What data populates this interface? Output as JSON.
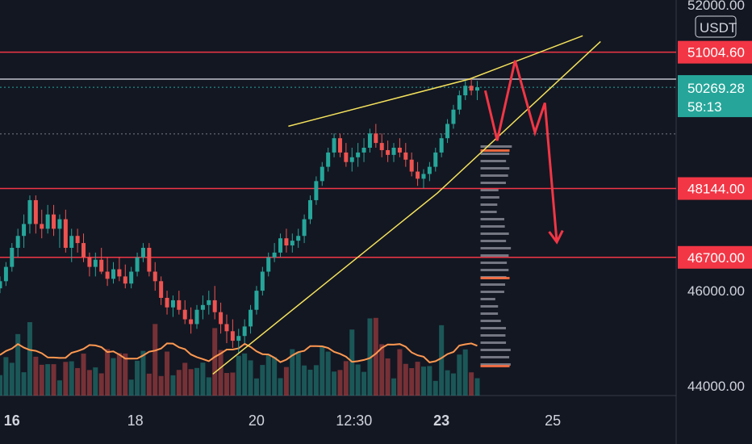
{
  "chart_data": {
    "type": "candlestick",
    "currency": "USDT",
    "price_axis": {
      "ticks": [
        "52000.00",
        "46000.00",
        "44000.00"
      ],
      "range": [
        43800,
        52100
      ]
    },
    "time_axis": {
      "ticks": [
        {
          "label": "16",
          "bold": true,
          "t": 0.6
        },
        {
          "label": "18",
          "bold": false,
          "t": 6.8
        },
        {
          "label": "20",
          "bold": false,
          "t": 12.9
        },
        {
          "label": "12:30",
          "bold": false,
          "t": 17.8
        },
        {
          "label": "23",
          "bold": true,
          "t": 22.2
        },
        {
          "label": "25",
          "bold": false,
          "t": 27.8
        }
      ],
      "range": [
        0,
        34
      ]
    },
    "levels": [
      {
        "label": "51004.60",
        "price": 51004.6,
        "color": "#f23645"
      },
      {
        "label": "48144.00",
        "price": 48144.0,
        "color": "#f23645"
      },
      {
        "label": "46700.00",
        "price": 46700.0,
        "color": "#f23645"
      }
    ],
    "gray_line": {
      "price": 50440,
      "color": "#9598a1"
    },
    "last_price": {
      "label": "50269.28",
      "countdown": "58:13",
      "price": 50269.28,
      "color": "#26a69a"
    },
    "dotted_line": {
      "price": 49290
    },
    "trendlines": [
      {
        "name": "upper-wedge-line",
        "points": [
          [
            14.5,
            49450
          ],
          [
            23.6,
            50440
          ],
          [
            29.3,
            51350
          ]
        ]
      },
      {
        "name": "lower-wedge-line",
        "points": [
          [
            10.7,
            44250
          ],
          [
            22.0,
            48050
          ],
          [
            30.2,
            51230
          ]
        ]
      }
    ],
    "projection": {
      "color": "#f23645",
      "points": [
        [
          24.4,
          50200
        ],
        [
          25.0,
          49150
        ],
        [
          25.9,
          50830
        ],
        [
          26.9,
          49320
        ],
        [
          27.4,
          49940
        ],
        [
          28.0,
          47020
        ]
      ]
    },
    "series": [
      {
        "name": "price",
        "candles": [
          [
            0,
            46050,
            46300,
            45950,
            46200
          ],
          [
            0.3,
            46200,
            46600,
            46100,
            46500
          ],
          [
            0.6,
            46500,
            47000,
            46400,
            46900
          ],
          [
            0.9,
            46900,
            47300,
            46700,
            47150
          ],
          [
            1.2,
            47150,
            47600,
            46900,
            47400
          ],
          [
            1.5,
            47400,
            48000,
            47200,
            47900
          ],
          [
            1.8,
            47900,
            48000,
            47200,
            47400
          ],
          [
            2.1,
            47400,
            47700,
            47100,
            47300
          ],
          [
            2.4,
            47300,
            47800,
            47200,
            47600
          ],
          [
            2.7,
            47600,
            47800,
            47150,
            47300
          ],
          [
            3.0,
            47300,
            47600,
            46900,
            47500
          ],
          [
            3.3,
            47500,
            47700,
            46800,
            46900
          ],
          [
            3.6,
            46900,
            47300,
            46600,
            47150
          ],
          [
            3.9,
            47150,
            47300,
            46800,
            47000
          ],
          [
            4.2,
            47000,
            47200,
            46600,
            46700
          ],
          [
            4.5,
            46700,
            46800,
            46300,
            46500
          ],
          [
            4.8,
            46500,
            46800,
            46300,
            46650
          ],
          [
            5.1,
            46650,
            46900,
            46350,
            46400
          ],
          [
            5.4,
            46400,
            46700,
            46100,
            46250
          ],
          [
            5.7,
            46250,
            46600,
            46150,
            46450
          ],
          [
            6.0,
            46450,
            46700,
            46200,
            46300
          ],
          [
            6.3,
            46300,
            46550,
            46050,
            46150
          ],
          [
            6.6,
            46150,
            46500,
            46050,
            46400
          ],
          [
            6.9,
            46400,
            46800,
            46300,
            46700
          ],
          [
            7.2,
            46700,
            47000,
            46600,
            46900
          ],
          [
            7.5,
            46900,
            47000,
            46300,
            46400
          ],
          [
            7.8,
            46400,
            46600,
            46000,
            46200
          ],
          [
            8.1,
            46200,
            46300,
            45700,
            45850
          ],
          [
            8.4,
            45850,
            46000,
            45500,
            45650
          ],
          [
            8.7,
            45650,
            45900,
            45450,
            45800
          ],
          [
            9.0,
            45800,
            46000,
            45500,
            45600
          ],
          [
            9.3,
            45600,
            45800,
            45300,
            45400
          ],
          [
            9.6,
            45400,
            45650,
            45100,
            45300
          ],
          [
            9.9,
            45300,
            45700,
            45200,
            45600
          ],
          [
            10.2,
            45600,
            45900,
            45400,
            45700
          ],
          [
            10.5,
            45700,
            46000,
            45500,
            45800
          ],
          [
            10.8,
            45800,
            46100,
            45400,
            45550
          ],
          [
            11.1,
            45550,
            45750,
            45100,
            45300
          ],
          [
            11.4,
            45300,
            45500,
            44900,
            45150
          ],
          [
            11.7,
            45150,
            45400,
            44800,
            44950
          ],
          [
            12.0,
            44950,
            45200,
            44700,
            45050
          ],
          [
            12.3,
            45050,
            45400,
            44900,
            45250
          ],
          [
            12.6,
            45250,
            45700,
            45100,
            45600
          ],
          [
            12.9,
            45600,
            46100,
            45500,
            46000
          ],
          [
            13.2,
            46000,
            46500,
            45900,
            46400
          ],
          [
            13.5,
            46400,
            46800,
            46300,
            46700
          ],
          [
            13.8,
            46700,
            47000,
            46600,
            46800
          ],
          [
            14.1,
            46800,
            47200,
            46700,
            47100
          ],
          [
            14.4,
            47100,
            47300,
            46800,
            46950
          ],
          [
            14.7,
            46950,
            47200,
            46800,
            47050
          ],
          [
            15.0,
            47050,
            47300,
            46900,
            47150
          ],
          [
            15.3,
            47150,
            47600,
            47000,
            47500
          ],
          [
            15.6,
            47500,
            48000,
            47400,
            47900
          ],
          [
            15.9,
            47900,
            48400,
            47800,
            48300
          ],
          [
            16.2,
            48300,
            48700,
            48200,
            48600
          ],
          [
            16.5,
            48600,
            49000,
            48500,
            48900
          ],
          [
            16.8,
            48900,
            49300,
            48800,
            49200
          ],
          [
            17.1,
            49200,
            49300,
            48800,
            48900
          ],
          [
            17.4,
            48900,
            49100,
            48600,
            48700
          ],
          [
            17.7,
            48700,
            49000,
            48500,
            48800
          ],
          [
            18.0,
            48800,
            49100,
            48600,
            48900
          ],
          [
            18.3,
            48900,
            49200,
            48700,
            49000
          ],
          [
            18.6,
            49000,
            49400,
            48900,
            49300
          ],
          [
            18.9,
            49300,
            49500,
            49000,
            49100
          ],
          [
            19.2,
            49100,
            49300,
            48800,
            48950
          ],
          [
            19.5,
            48950,
            49150,
            48700,
            48850
          ],
          [
            19.8,
            48850,
            49100,
            48700,
            49000
          ],
          [
            20.1,
            49000,
            49200,
            48800,
            48900
          ],
          [
            20.4,
            48900,
            49100,
            48600,
            48750
          ],
          [
            20.7,
            48750,
            48900,
            48400,
            48500
          ],
          [
            21.0,
            48500,
            48700,
            48200,
            48350
          ],
          [
            21.3,
            48350,
            48550,
            48150,
            48450
          ],
          [
            21.6,
            48450,
            48700,
            48300,
            48600
          ],
          [
            21.9,
            48600,
            49000,
            48500,
            48900
          ],
          [
            22.2,
            48900,
            49300,
            48800,
            49200
          ],
          [
            22.5,
            49200,
            49600,
            49100,
            49500
          ],
          [
            22.8,
            49500,
            49900,
            49400,
            49800
          ],
          [
            23.1,
            49800,
            50200,
            49700,
            50100
          ],
          [
            23.4,
            50100,
            50400,
            50000,
            50300
          ],
          [
            23.7,
            50300,
            50450,
            50100,
            50200
          ],
          [
            24.0,
            50200,
            50400,
            50000,
            50269
          ]
        ]
      }
    ]
  }
}
